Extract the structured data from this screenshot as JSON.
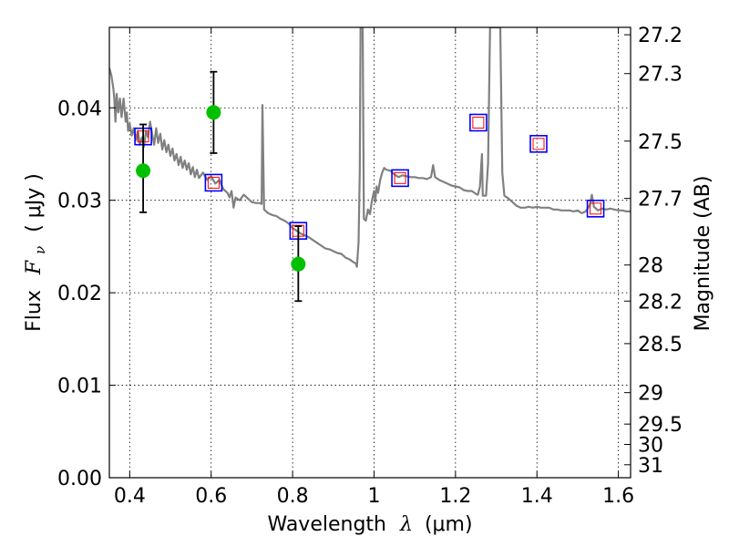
{
  "chart_data": {
    "type": "line",
    "xlabel_prefix": "Wavelength",
    "xlabel_symbol": "λ",
    "xlabel_unit": "(μm)",
    "ylabel_prefix": "Flux",
    "ylabel_symbol": "F",
    "ylabel_subscript": "ν",
    "ylabel_unit": "( μJy )",
    "y2label": "Magnitude (AB)",
    "xlim": [
      0.35,
      1.63
    ],
    "ylim": [
      0.0,
      0.0487
    ],
    "grid": true,
    "x_ticks": [
      0.4,
      0.6,
      0.8,
      1.0,
      1.2,
      1.4,
      1.6
    ],
    "x_tick_labels": [
      "0.4",
      "0.6",
      "0.8",
      "1",
      "1.2",
      "1.4",
      "1.6"
    ],
    "y_ticks": [
      0.0,
      0.01,
      0.02,
      0.03,
      0.04
    ],
    "y_tick_labels": [
      "0.00",
      "0.01",
      "0.02",
      "0.03",
      "0.04"
    ],
    "y2_ticks": [
      {
        "label": "27.2",
        "flux": 0.0479
      },
      {
        "label": "27.3",
        "flux": 0.0437
      },
      {
        "label": "27.5",
        "flux": 0.0364
      },
      {
        "label": "27.7",
        "flux": 0.0302
      },
      {
        "label": "28",
        "flux": 0.023
      },
      {
        "label": "28.2",
        "flux": 0.0191
      },
      {
        "label": "28.5",
        "flux": 0.0145
      },
      {
        "label": "29",
        "flux": 0.0092
      },
      {
        "label": "29.5",
        "flux": 0.0058
      },
      {
        "label": "30",
        "flux": 0.0036
      },
      {
        "label": "31",
        "flux": 0.0014
      }
    ],
    "colors": {
      "spectrum": "#808080",
      "photometry": "#00c000",
      "model_box": "#0000ff",
      "model_inner": "#ff0000",
      "errorbar": "#000000"
    },
    "series": [
      {
        "type": "line",
        "points": [
          [
            0.35,
            0.0443
          ],
          [
            0.355,
            0.0435
          ],
          [
            0.36,
            0.042
          ],
          [
            0.362,
            0.041
          ],
          [
            0.365,
            0.0385
          ],
          [
            0.368,
            0.0415
          ],
          [
            0.372,
            0.0395
          ],
          [
            0.376,
            0.041
          ],
          [
            0.38,
            0.039
          ],
          [
            0.385,
            0.041
          ],
          [
            0.39,
            0.0385
          ],
          [
            0.393,
            0.0395
          ],
          [
            0.396,
            0.0375
          ],
          [
            0.4,
            0.0383
          ],
          [
            0.405,
            0.037
          ],
          [
            0.41,
            0.0378
          ],
          [
            0.415,
            0.0365
          ],
          [
            0.42,
            0.0375
          ],
          [
            0.425,
            0.036
          ],
          [
            0.43,
            0.0368
          ],
          [
            0.435,
            0.0358
          ],
          [
            0.44,
            0.0375
          ],
          [
            0.445,
            0.0368
          ],
          [
            0.45,
            0.0385
          ],
          [
            0.455,
            0.0372
          ],
          [
            0.46,
            0.036
          ],
          [
            0.465,
            0.0378
          ],
          [
            0.47,
            0.0362
          ],
          [
            0.475,
            0.0372
          ],
          [
            0.48,
            0.0355
          ],
          [
            0.485,
            0.0365
          ],
          [
            0.49,
            0.0352
          ],
          [
            0.495,
            0.036
          ],
          [
            0.5,
            0.0348
          ],
          [
            0.505,
            0.0356
          ],
          [
            0.51,
            0.0343
          ],
          [
            0.515,
            0.035
          ],
          [
            0.52,
            0.0338
          ],
          [
            0.525,
            0.0347
          ],
          [
            0.53,
            0.0335
          ],
          [
            0.535,
            0.0343
          ],
          [
            0.54,
            0.0333
          ],
          [
            0.545,
            0.034
          ],
          [
            0.55,
            0.0328
          ],
          [
            0.555,
            0.0336
          ],
          [
            0.56,
            0.0325
          ],
          [
            0.565,
            0.0333
          ],
          [
            0.57,
            0.0324
          ],
          [
            0.58,
            0.033
          ],
          [
            0.59,
            0.0322
          ],
          [
            0.6,
            0.0326
          ],
          [
            0.61,
            0.0318
          ],
          [
            0.62,
            0.0322
          ],
          [
            0.63,
            0.0312
          ],
          [
            0.64,
            0.0308
          ],
          [
            0.645,
            0.0303
          ],
          [
            0.65,
            0.031
          ],
          [
            0.655,
            0.0292
          ],
          [
            0.66,
            0.0303
          ],
          [
            0.67,
            0.03
          ],
          [
            0.68,
            0.0306
          ],
          [
            0.69,
            0.0302
          ],
          [
            0.7,
            0.0298
          ],
          [
            0.71,
            0.0297
          ],
          [
            0.72,
            0.0297
          ],
          [
            0.724,
            0.0296
          ],
          [
            0.726,
            0.0403
          ],
          [
            0.73,
            0.029
          ],
          [
            0.74,
            0.0286
          ],
          [
            0.75,
            0.0284
          ],
          [
            0.76,
            0.0283
          ],
          [
            0.77,
            0.028
          ],
          [
            0.78,
            0.0278
          ],
          [
            0.79,
            0.0275
          ],
          [
            0.8,
            0.027
          ],
          [
            0.81,
            0.0267
          ],
          [
            0.82,
            0.0264
          ],
          [
            0.83,
            0.0262
          ],
          [
            0.84,
            0.026
          ],
          [
            0.85,
            0.0257
          ],
          [
            0.86,
            0.0254
          ],
          [
            0.87,
            0.0251
          ],
          [
            0.88,
            0.0248
          ],
          [
            0.89,
            0.0247
          ],
          [
            0.9,
            0.0245
          ],
          [
            0.91,
            0.0243
          ],
          [
            0.92,
            0.0242
          ],
          [
            0.93,
            0.0238
          ],
          [
            0.94,
            0.0236
          ],
          [
            0.95,
            0.0233
          ],
          [
            0.955,
            0.0232
          ],
          [
            0.958,
            0.0228
          ],
          [
            0.962,
            0.0255
          ],
          [
            0.965,
            0.033
          ],
          [
            0.967,
            0.0487
          ],
          [
            0.972,
            0.0487
          ],
          [
            0.975,
            0.028
          ],
          [
            0.98,
            0.0278
          ],
          [
            0.985,
            0.029
          ],
          [
            0.99,
            0.0285
          ],
          [
            0.995,
            0.03
          ],
          [
            1.0,
            0.031
          ],
          [
            1.003,
            0.0298
          ],
          [
            1.006,
            0.0315
          ],
          [
            1.01,
            0.0308
          ],
          [
            1.015,
            0.0322
          ],
          [
            1.02,
            0.033
          ],
          [
            1.025,
            0.0335
          ],
          [
            1.03,
            0.0333
          ],
          [
            1.04,
            0.0332
          ],
          [
            1.05,
            0.0328
          ],
          [
            1.06,
            0.0325
          ],
          [
            1.07,
            0.0327
          ],
          [
            1.08,
            0.0326
          ],
          [
            1.09,
            0.0325
          ],
          [
            1.1,
            0.0325
          ],
          [
            1.11,
            0.0324
          ],
          [
            1.12,
            0.0324
          ],
          [
            1.13,
            0.0323
          ],
          [
            1.14,
            0.0325
          ],
          [
            1.145,
            0.0338
          ],
          [
            1.15,
            0.0325
          ],
          [
            1.16,
            0.0322
          ],
          [
            1.17,
            0.032
          ],
          [
            1.18,
            0.0318
          ],
          [
            1.19,
            0.0316
          ],
          [
            1.2,
            0.0315
          ],
          [
            1.21,
            0.0314
          ],
          [
            1.22,
            0.0311
          ],
          [
            1.23,
            0.031
          ],
          [
            1.24,
            0.031
          ],
          [
            1.25,
            0.0307
          ],
          [
            1.255,
            0.0306
          ],
          [
            1.26,
            0.0315
          ],
          [
            1.265,
            0.035
          ],
          [
            1.267,
            0.0305
          ],
          [
            1.27,
            0.0305
          ],
          [
            1.275,
            0.0305
          ],
          [
            1.28,
            0.034
          ],
          [
            1.285,
            0.0487
          ],
          [
            1.31,
            0.0487
          ],
          [
            1.315,
            0.033
          ],
          [
            1.32,
            0.0305
          ],
          [
            1.33,
            0.0302
          ],
          [
            1.34,
            0.0298
          ],
          [
            1.35,
            0.0294
          ],
          [
            1.36,
            0.0292
          ],
          [
            1.37,
            0.0292
          ],
          [
            1.38,
            0.0293
          ],
          [
            1.39,
            0.0292
          ],
          [
            1.4,
            0.0293
          ],
          [
            1.41,
            0.0292
          ],
          [
            1.42,
            0.0292
          ],
          [
            1.43,
            0.0292
          ],
          [
            1.44,
            0.029
          ],
          [
            1.45,
            0.029
          ],
          [
            1.46,
            0.0289
          ],
          [
            1.47,
            0.0289
          ],
          [
            1.48,
            0.0289
          ],
          [
            1.49,
            0.0288
          ],
          [
            1.5,
            0.0289
          ],
          [
            1.51,
            0.0286
          ],
          [
            1.52,
            0.0288
          ],
          [
            1.53,
            0.0295
          ],
          [
            1.535,
            0.0306
          ],
          [
            1.54,
            0.0293
          ],
          [
            1.55,
            0.0289
          ],
          [
            1.56,
            0.0291
          ],
          [
            1.57,
            0.029
          ],
          [
            1.58,
            0.0291
          ],
          [
            1.59,
            0.029
          ],
          [
            1.6,
            0.0289
          ],
          [
            1.61,
            0.0289
          ],
          [
            1.62,
            0.0288
          ],
          [
            1.63,
            0.0288
          ]
        ]
      },
      {
        "type": "errorbar_scatter",
        "points": [
          {
            "x": 0.433,
            "y": 0.0332,
            "yerr_low": 0.0287,
            "yerr_high": 0.0382
          },
          {
            "x": 0.606,
            "y": 0.0395,
            "yerr_low": 0.0351,
            "yerr_high": 0.0439
          },
          {
            "x": 0.814,
            "y": 0.0231,
            "yerr_low": 0.0191,
            "yerr_high": 0.0272
          }
        ]
      },
      {
        "type": "model_boxes",
        "points": [
          {
            "x": 0.433,
            "y": 0.0369
          },
          {
            "x": 0.606,
            "y": 0.0319
          },
          {
            "x": 0.814,
            "y": 0.0267
          },
          {
            "x": 1.064,
            "y": 0.0324
          },
          {
            "x": 1.256,
            "y": 0.0384
          },
          {
            "x": 1.404,
            "y": 0.0361
          },
          {
            "x": 1.544,
            "y": 0.0291
          }
        ]
      }
    ]
  }
}
